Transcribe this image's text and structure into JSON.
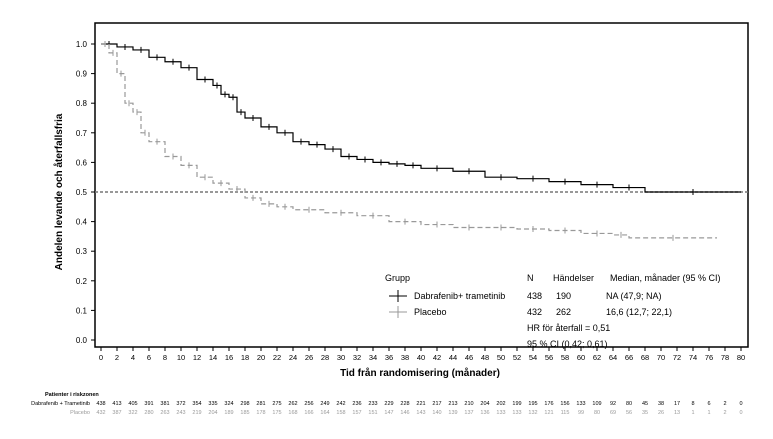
{
  "chart_data": {
    "type": "line",
    "title": "",
    "xlabel": "Tid från randomisering (månader)",
    "ylabel": "Andelen levande och återfallsfria",
    "xlim": [
      0,
      80
    ],
    "ylim": [
      0,
      1.0
    ],
    "x_ticks": [
      0,
      2,
      4,
      6,
      8,
      10,
      12,
      14,
      16,
      18,
      20,
      22,
      24,
      26,
      28,
      30,
      32,
      34,
      36,
      38,
      40,
      42,
      44,
      46,
      48,
      50,
      52,
      54,
      56,
      58,
      60,
      62,
      64,
      66,
      68,
      70,
      72,
      74,
      76,
      78,
      80
    ],
    "y_ticks": [
      "0.0",
      "0.1",
      "0.2",
      "0.3",
      "0.4",
      "0.5",
      "0.6",
      "0.7",
      "0.8",
      "0.9",
      "1.0"
    ],
    "reference_line": 0.5,
    "grid": false,
    "series": [
      {
        "name": "Dabrafenib+ trametinib",
        "color": "#000000",
        "style": "solid",
        "x": [
          0,
          2,
          4,
          6,
          8,
          10,
          12,
          14,
          15,
          16,
          17,
          18,
          20,
          22,
          24,
          26,
          28,
          30,
          32,
          34,
          36,
          38,
          40,
          44,
          48,
          52,
          56,
          60,
          64,
          68,
          80
        ],
        "y": [
          1.0,
          0.99,
          0.98,
          0.955,
          0.94,
          0.92,
          0.88,
          0.86,
          0.83,
          0.82,
          0.77,
          0.75,
          0.72,
          0.7,
          0.67,
          0.66,
          0.645,
          0.62,
          0.61,
          0.6,
          0.595,
          0.59,
          0.58,
          0.57,
          0.55,
          0.545,
          0.535,
          0.525,
          0.515,
          0.5,
          0.5
        ]
      },
      {
        "name": "Placebo",
        "color": "#999999",
        "style": "dashed",
        "x": [
          0,
          1,
          2,
          3,
          4,
          5,
          6,
          8,
          10,
          12,
          14,
          16,
          18,
          20,
          22,
          24,
          28,
          32,
          36,
          40,
          44,
          48,
          52,
          56,
          60,
          64,
          66,
          77
        ],
        "y": [
          1.0,
          0.97,
          0.9,
          0.8,
          0.77,
          0.7,
          0.67,
          0.62,
          0.59,
          0.55,
          0.53,
          0.51,
          0.48,
          0.46,
          0.45,
          0.44,
          0.43,
          0.42,
          0.4,
          0.39,
          0.38,
          0.38,
          0.375,
          0.37,
          0.36,
          0.355,
          0.345,
          0.345
        ]
      }
    ],
    "legend": {
      "position": "bottom-right",
      "header": {
        "group": "Grupp",
        "n": "N",
        "events": "Händelser",
        "median": "Median, månader (95 % CI)"
      },
      "rows": [
        {
          "label": "Dabrafenib+ trametinib",
          "n": "438",
          "events": "190",
          "median": "NA (47,9; NA)"
        },
        {
          "label": "Placebo",
          "n": "432",
          "events": "262",
          "median": "16,6 (12,7; 22,1)"
        }
      ],
      "hr": "HR för återfall = 0,51",
      "ci": "95 % CI (0,42; 0,61)"
    },
    "risk_table": {
      "title": "Patienter i riskzonen",
      "rows": [
        {
          "label": "Dabrafenib + Trametinib",
          "values": [
            "438",
            "413",
            "405",
            "391",
            "381",
            "372",
            "354",
            "335",
            "324",
            "298",
            "281",
            "275",
            "262",
            "256",
            "249",
            "242",
            "236",
            "233",
            "229",
            "228",
            "221",
            "217",
            "213",
            "210",
            "204",
            "202",
            "199",
            "195",
            "176",
            "156",
            "133",
            "109",
            "92",
            "80",
            "45",
            "38",
            "17",
            "8",
            "6",
            "2",
            "0"
          ]
        },
        {
          "label": "Placebo",
          "values": [
            "432",
            "387",
            "322",
            "280",
            "263",
            "243",
            "219",
            "204",
            "189",
            "185",
            "178",
            "175",
            "168",
            "166",
            "164",
            "158",
            "157",
            "151",
            "147",
            "146",
            "143",
            "140",
            "139",
            "137",
            "136",
            "133",
            "133",
            "132",
            "121",
            "115",
            "99",
            "80",
            "69",
            "56",
            "35",
            "26",
            "13",
            "1",
            "1",
            "2",
            "0"
          ]
        }
      ]
    }
  }
}
